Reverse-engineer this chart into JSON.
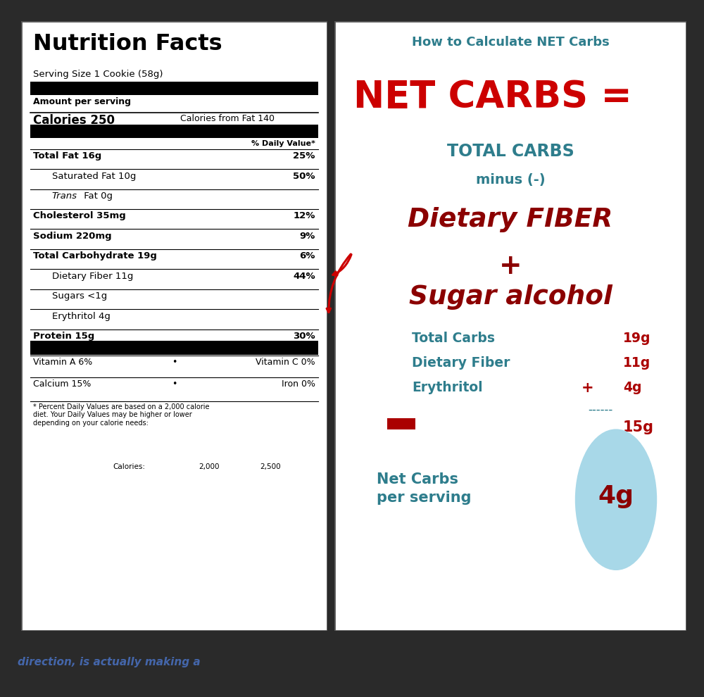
{
  "bg_color": "#2a2a2a",
  "panel_bg": "#ffffff",
  "title_text": "How to Calculate NET Carbs",
  "title_color": "#2e7d8c",
  "net_carbs_eq_text": "NET CARBS =",
  "net_carbs_eq_color": "#cc0000",
  "total_carbs_text": "TOTAL CARBS",
  "total_carbs_color": "#2e7d8c",
  "minus_text": "minus (-)",
  "minus_color": "#2e7d8c",
  "fiber_text": "Dietary FIBER",
  "fiber_color": "#8b0000",
  "plus_text": "+",
  "plus_color": "#8b0000",
  "sugar_alcohol_text": "Sugar alcohol",
  "sugar_alcohol_color": "#8b0000",
  "label1": "Total Carbs",
  "val1": "19g",
  "label2": "Dietary Fiber",
  "val2": "11g",
  "label3": "Erythritol",
  "val3": "4g",
  "plus_sign": "+",
  "label_color": "#2e7d8c",
  "val_color": "#aa0000",
  "minus_sign": "-",
  "minus_sign_color": "#aa0000",
  "subtotal_val": "15g",
  "subtotal_color": "#aa0000",
  "net_carbs_label": "Net Carbs\nper serving",
  "net_carbs_val": "4g",
  "net_carbs_label_color": "#2e7d8c",
  "net_carbs_val_color": "#8b0000",
  "circle_color": "#a8d8e8",
  "nf_title": "Nutrition Facts",
  "nf_serving": "Serving Size 1 Cookie (58g)",
  "nf_amount": "Amount per serving",
  "nf_calories": "Calories 250",
  "nf_cal_fat": "Calories from Fat 140",
  "nf_dv": "% Daily Value*",
  "nf_total_fat": "Total Fat 16g",
  "nf_total_fat_pct": "25%",
  "nf_sat_fat": "Saturated Fat 10g",
  "nf_sat_fat_pct": "50%",
  "nf_chol": "Cholesterol 35mg",
  "nf_chol_pct": "12%",
  "nf_sodium": "Sodium 220mg",
  "nf_sodium_pct": "9%",
  "nf_total_carb": "Total Carbohydrate 19g",
  "nf_total_carb_pct": "6%",
  "nf_fiber": "Dietary Fiber 11g",
  "nf_fiber_pct": "44%",
  "nf_sugars": "Sugars <1g",
  "nf_erythritol": "Erythritol 4g",
  "nf_protein": "Protein 15g",
  "nf_protein_pct": "30%",
  "nf_vita": "Vitamin A 6%",
  "nf_vitc": "Vitamin C 0%",
  "nf_calcium": "Calcium 15%",
  "nf_iron": "Iron 0%",
  "nf_footnote": "* Percent Daily Values are based on a 2,000 calorie\ndiet. Your Daily Values may be higher or lower\ndepending on your calorie needs:",
  "nf_cal_label": "Calories:",
  "nf_cal_2000": "2,000",
  "nf_cal_2500": "2,500",
  "bottom_text": "direction, is actually making a",
  "bottom_text_color": "#4466aa"
}
